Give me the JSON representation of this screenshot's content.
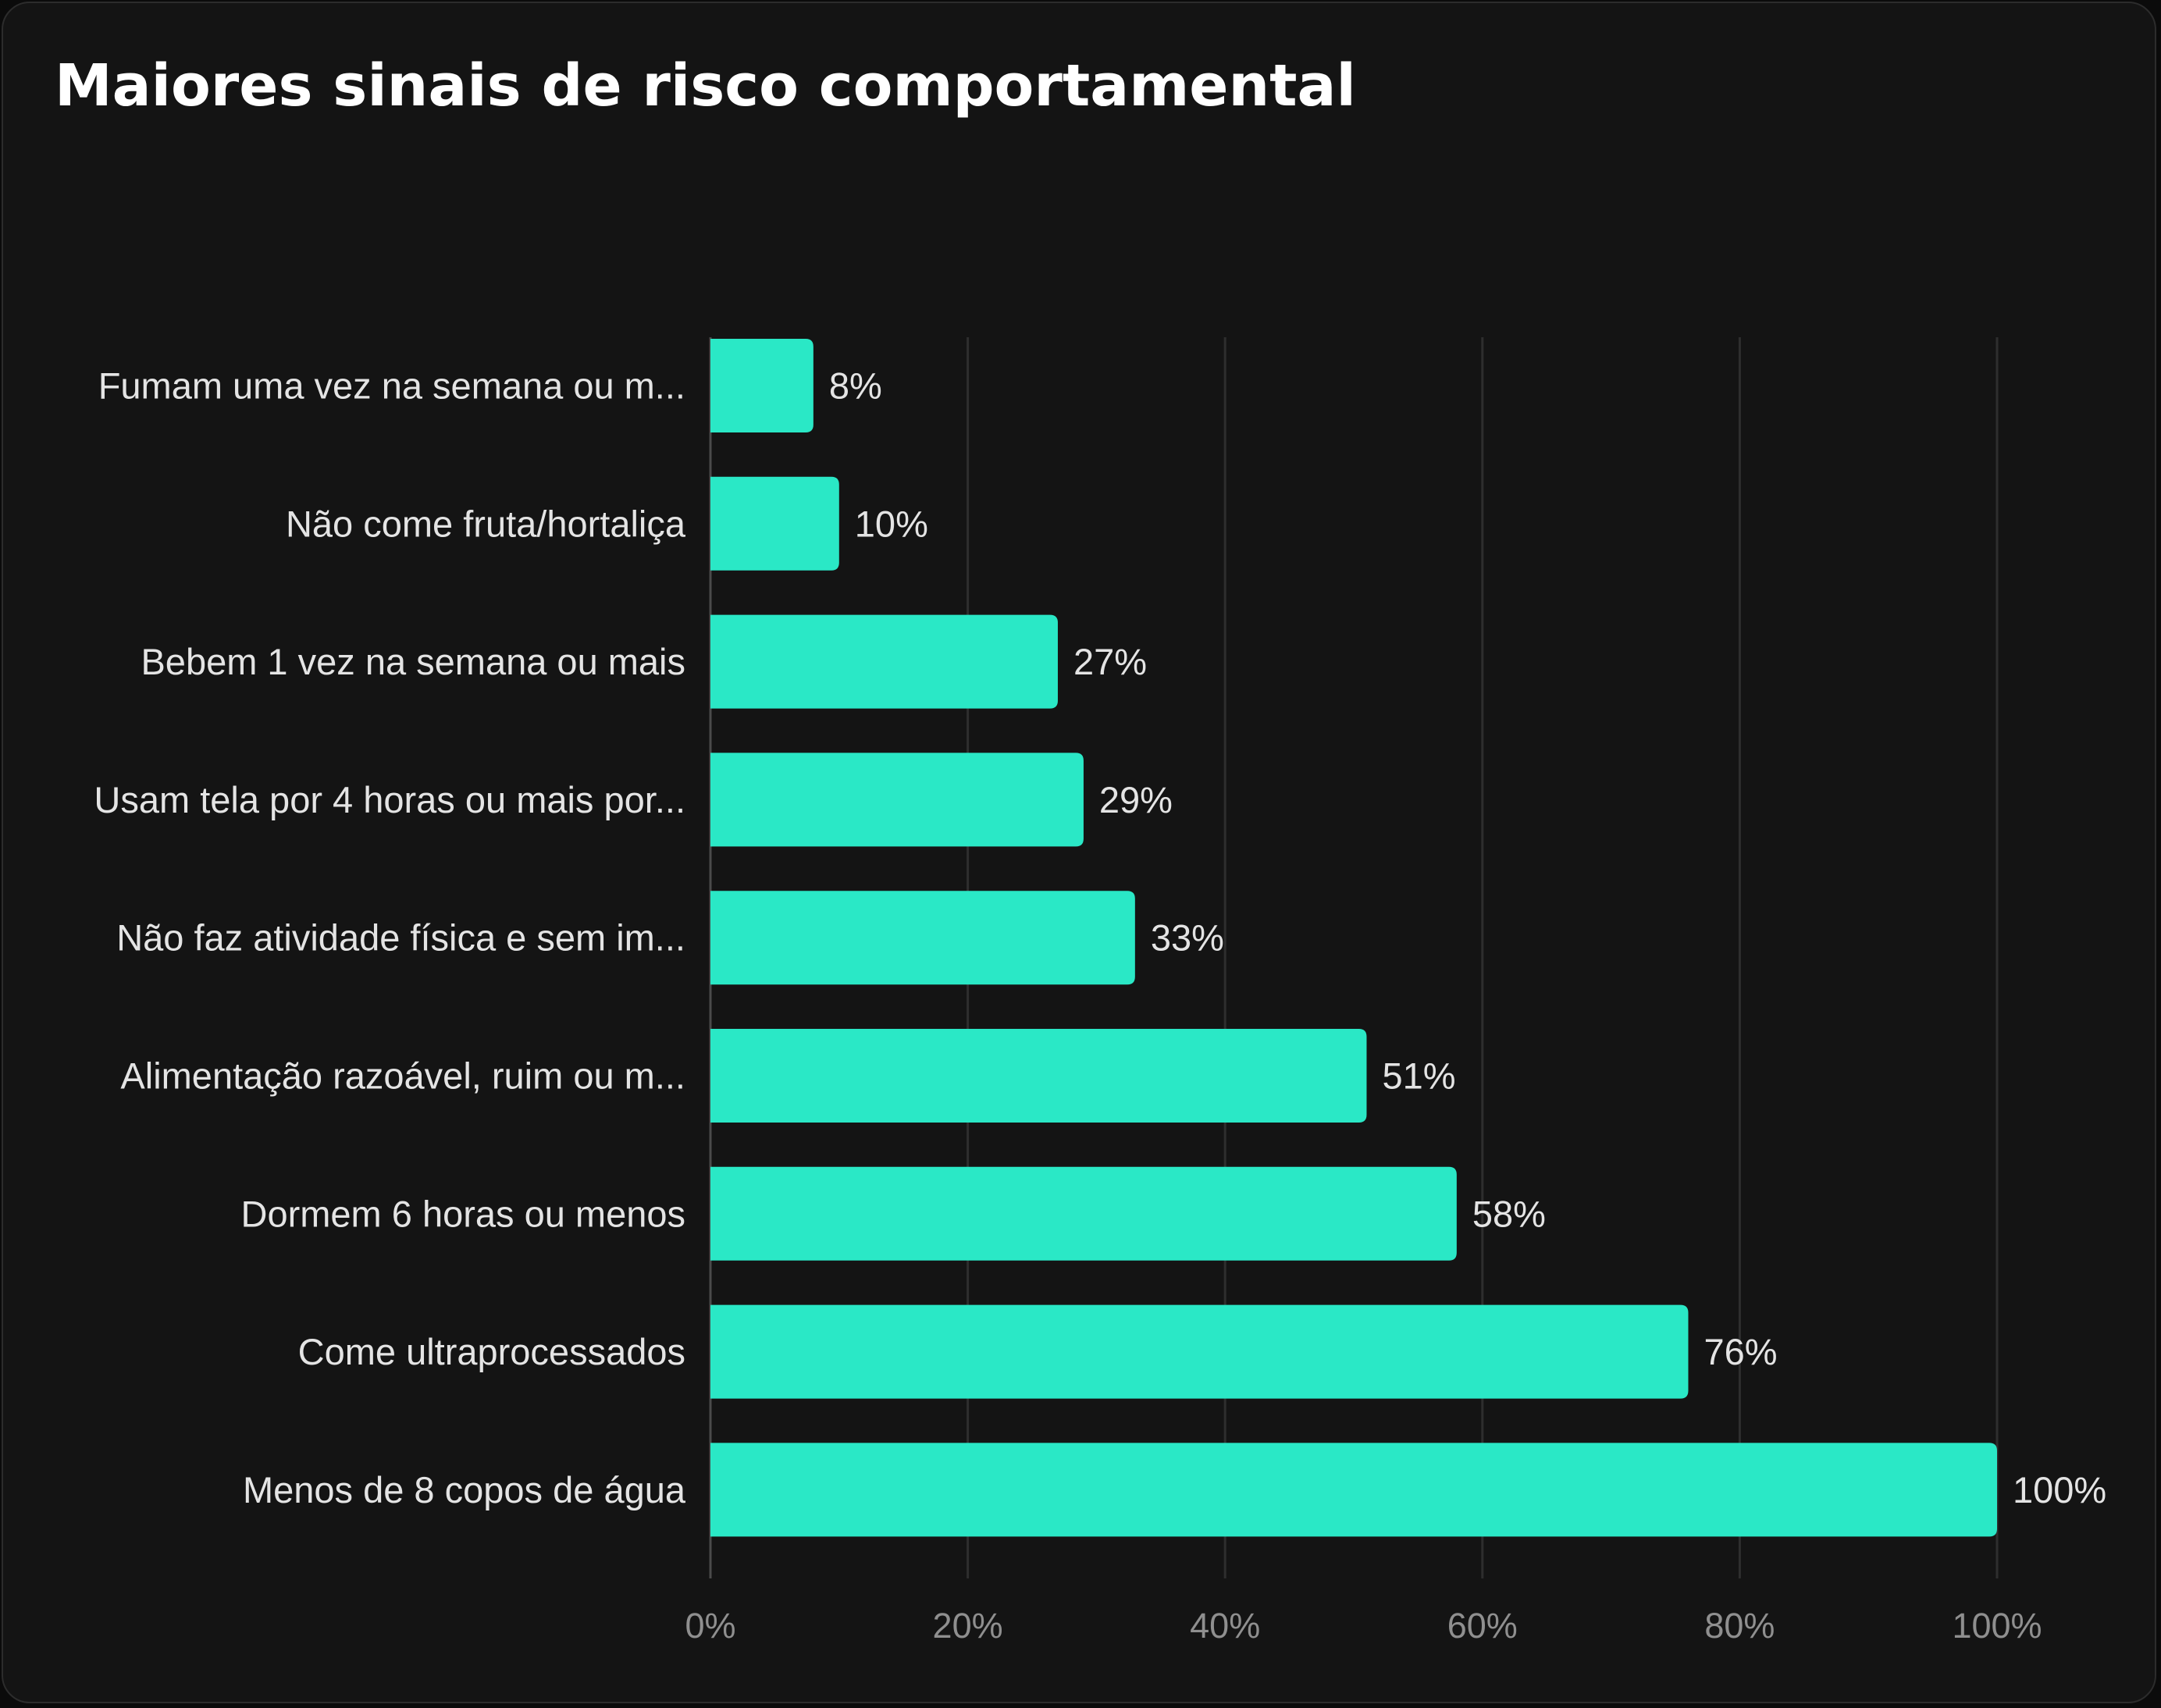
{
  "colors": {
    "background": "#141414",
    "bar": "#2ae8c6",
    "grid": "#2e2e2e",
    "axis": "#4a4a4a",
    "text": "#e4e4e4",
    "tick_text": "#8f8f8f"
  },
  "chart_data": {
    "type": "bar",
    "orientation": "horizontal",
    "title": "Maiores sinais de risco comportamental",
    "categories": [
      "Fumam uma vez na semana ou m...",
      "Não come fruta/hortaliça",
      "Bebem 1 vez na semana ou mais",
      "Usam tela por 4 horas ou mais por...",
      "Não faz atividade física e sem im...",
      "Alimentação razoável, ruim ou m...",
      "Dormem 6 horas ou menos",
      "Come ultraprocessados",
      "Menos de 8 copos de água"
    ],
    "values": [
      8,
      10,
      27,
      29,
      33,
      51,
      58,
      76,
      100
    ],
    "value_labels": [
      "8%",
      "10%",
      "27%",
      "29%",
      "33%",
      "51%",
      "58%",
      "76%",
      "100%"
    ],
    "xlim": [
      0,
      100
    ],
    "x_ticks": [
      0,
      20,
      40,
      60,
      80,
      100
    ],
    "x_tick_labels": [
      "0%",
      "20%",
      "40%",
      "60%",
      "80%",
      "100%"
    ],
    "grid": true,
    "legend": "none"
  }
}
